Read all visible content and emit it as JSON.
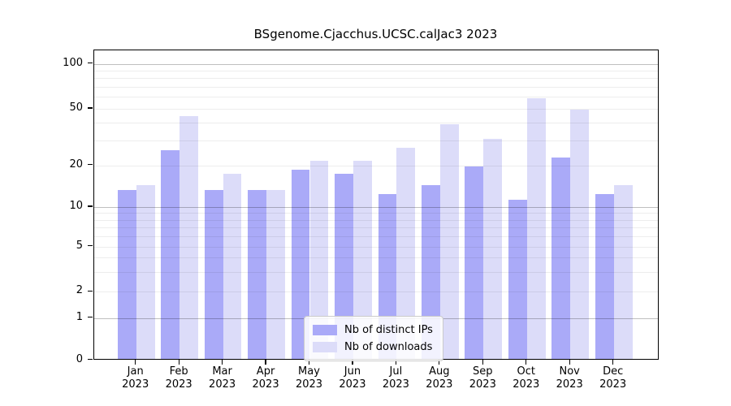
{
  "title": "BSgenome.Cjacchus.UCSC.calJac3 2023",
  "chart_data": {
    "type": "bar",
    "title": "BSgenome.Cjacchus.UCSC.calJac3 2023",
    "categories": [
      "Jan",
      "Feb",
      "Mar",
      "Apr",
      "May",
      "Jun",
      "Jul",
      "Aug",
      "Sep",
      "Oct",
      "Nov",
      "Dec"
    ],
    "year_label": "2023",
    "series": [
      {
        "name": "Nb of distinct IPs",
        "color": "#aaaaf8",
        "values": [
          13,
          25,
          13,
          13,
          18,
          17,
          12,
          14,
          19,
          11,
          22,
          12
        ]
      },
      {
        "name": "Nb of downloads",
        "color": "#dcdcf9",
        "values": [
          14,
          43,
          17,
          13,
          21,
          21,
          26,
          38,
          30,
          57,
          48,
          14
        ]
      }
    ],
    "xlabel": "",
    "ylabel": "",
    "y_tick_labels": [
      "100",
      "50",
      "20",
      "10",
      "5",
      "2",
      "1",
      "0"
    ],
    "y_tick_values": [
      100,
      50,
      20,
      10,
      5,
      2,
      1,
      0
    ],
    "minor_gridline_values": [
      2,
      3,
      4,
      5,
      6,
      7,
      8,
      9,
      20,
      30,
      40,
      50,
      60,
      70,
      80,
      90
    ],
    "emphasized_gridline_values": [
      1,
      10,
      100
    ],
    "scale": "log-like",
    "ylim": [
      0,
      100
    ],
    "grid": true,
    "legend_position": "bottom-center"
  }
}
